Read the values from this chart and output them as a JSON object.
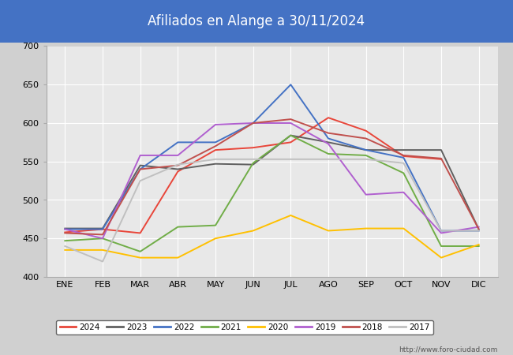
{
  "title": "Afiliados en Alange a 30/11/2024",
  "title_bg_color": "#4472c4",
  "title_text_color": "white",
  "ylim": [
    400,
    700
  ],
  "yticks": [
    400,
    450,
    500,
    550,
    600,
    650,
    700
  ],
  "months": [
    "ENE",
    "FEB",
    "MAR",
    "ABR",
    "MAY",
    "JUN",
    "JUL",
    "AGO",
    "SEP",
    "OCT",
    "NOV",
    "DIC"
  ],
  "series": {
    "2024": {
      "color": "#e8463a",
      "data": [
        458,
        462,
        457,
        537,
        565,
        568,
        575,
        607,
        590,
        557,
        553,
        null
      ]
    },
    "2023": {
      "color": "#606060",
      "data": [
        463,
        463,
        545,
        540,
        547,
        546,
        584,
        575,
        565,
        565,
        565,
        462
      ]
    },
    "2022": {
      "color": "#4472c4",
      "data": [
        462,
        462,
        540,
        575,
        575,
        600,
        650,
        580,
        565,
        555,
        460,
        460
      ]
    },
    "2021": {
      "color": "#70ad47",
      "data": [
        447,
        450,
        433,
        465,
        467,
        548,
        584,
        560,
        558,
        535,
        440,
        440
      ]
    },
    "2020": {
      "color": "#ffc000",
      "data": [
        435,
        435,
        425,
        425,
        450,
        460,
        480,
        460,
        463,
        463,
        425,
        442
      ]
    },
    "2019": {
      "color": "#b05fcf",
      "data": [
        462,
        450,
        558,
        558,
        598,
        600,
        600,
        573,
        507,
        510,
        457,
        465
      ]
    },
    "2018": {
      "color": "#c0504d",
      "data": [
        457,
        455,
        540,
        545,
        570,
        600,
        605,
        587,
        580,
        558,
        554,
        462
      ]
    },
    "2017": {
      "color": "#c0c0c0",
      "data": [
        440,
        420,
        525,
        546,
        553,
        553,
        553,
        553,
        553,
        548,
        460,
        460
      ]
    }
  },
  "legend_order": [
    "2024",
    "2023",
    "2022",
    "2021",
    "2020",
    "2019",
    "2018",
    "2017"
  ],
  "footer_text": "http://www.foro-ciudad.com",
  "outer_bg_color": "#d0d0d0",
  "plot_bg_color": "#e8e8e8",
  "grid_color": "white"
}
